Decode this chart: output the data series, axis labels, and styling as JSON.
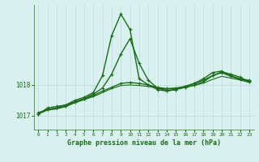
{
  "xlabel": "Graphe pression niveau de la mer (hPa)",
  "background_color": "#d8f0ee",
  "grid_color": "#b8dcd8",
  "line_color": "#1a6b1a",
  "spine_color": "#4a8a4a",
  "xlim": [
    -0.5,
    23.5
  ],
  "ylim": [
    1016.55,
    1020.6
  ],
  "yticks": [
    1017,
    1018
  ],
  "xticks": [
    0,
    1,
    2,
    3,
    4,
    5,
    6,
    7,
    8,
    9,
    10,
    11,
    12,
    13,
    14,
    15,
    16,
    17,
    18,
    19,
    20,
    21,
    22,
    23
  ],
  "series": [
    {
      "x": [
        0,
        1,
        2,
        3,
        4,
        5,
        6,
        7,
        8,
        9,
        10,
        11,
        12,
        13,
        14,
        15,
        16,
        17,
        18,
        19,
        20,
        21,
        22,
        23
      ],
      "y": [
        1017.05,
        1017.25,
        1017.3,
        1017.35,
        1017.5,
        1017.6,
        1017.75,
        1018.3,
        1019.6,
        1020.3,
        1019.8,
        1018.2,
        1018.0,
        1017.85,
        1017.8,
        1017.85,
        1017.95,
        1018.05,
        1018.2,
        1018.4,
        1018.45,
        1018.3,
        1018.2,
        1018.15
      ],
      "marker": "+",
      "lw": 1.0
    },
    {
      "x": [
        0,
        1,
        2,
        3,
        4,
        5,
        6,
        7,
        8,
        9,
        10,
        11,
        12,
        13,
        14,
        15,
        16,
        17,
        18,
        19,
        20,
        21,
        22,
        23
      ],
      "y": [
        1017.05,
        1017.2,
        1017.25,
        1017.3,
        1017.45,
        1017.55,
        1017.7,
        1017.9,
        1018.35,
        1019.0,
        1019.5,
        1018.7,
        1018.15,
        1017.9,
        1017.82,
        1017.85,
        1017.92,
        1018.0,
        1018.1,
        1018.3,
        1018.4,
        1018.28,
        1018.18,
        1018.12
      ],
      "marker": "+",
      "lw": 1.0
    },
    {
      "x": [
        0,
        1,
        2,
        3,
        4,
        5,
        6,
        7,
        8,
        9,
        10,
        11,
        12,
        13,
        14,
        15,
        16,
        17,
        18,
        19,
        20,
        21,
        22,
        23
      ],
      "y": [
        1017.1,
        1017.2,
        1017.25,
        1017.35,
        1017.45,
        1017.55,
        1017.65,
        1017.8,
        1017.92,
        1018.05,
        1018.08,
        1018.05,
        1018.0,
        1017.92,
        1017.88,
        1017.9,
        1017.95,
        1018.05,
        1018.15,
        1018.3,
        1018.42,
        1018.35,
        1018.25,
        1018.1
      ],
      "marker": "+",
      "lw": 1.0
    },
    {
      "x": [
        0,
        1,
        2,
        3,
        4,
        5,
        6,
        7,
        8,
        9,
        10,
        11,
        12,
        13,
        14,
        15,
        16,
        17,
        18,
        19,
        20,
        21,
        22,
        23
      ],
      "y": [
        1017.08,
        1017.18,
        1017.22,
        1017.3,
        1017.42,
        1017.52,
        1017.62,
        1017.75,
        1017.88,
        1017.98,
        1018.0,
        1017.98,
        1017.95,
        1017.9,
        1017.86,
        1017.88,
        1017.92,
        1017.98,
        1018.06,
        1018.18,
        1018.28,
        1018.22,
        1018.16,
        1018.08
      ],
      "marker": null,
      "lw": 0.8
    }
  ]
}
